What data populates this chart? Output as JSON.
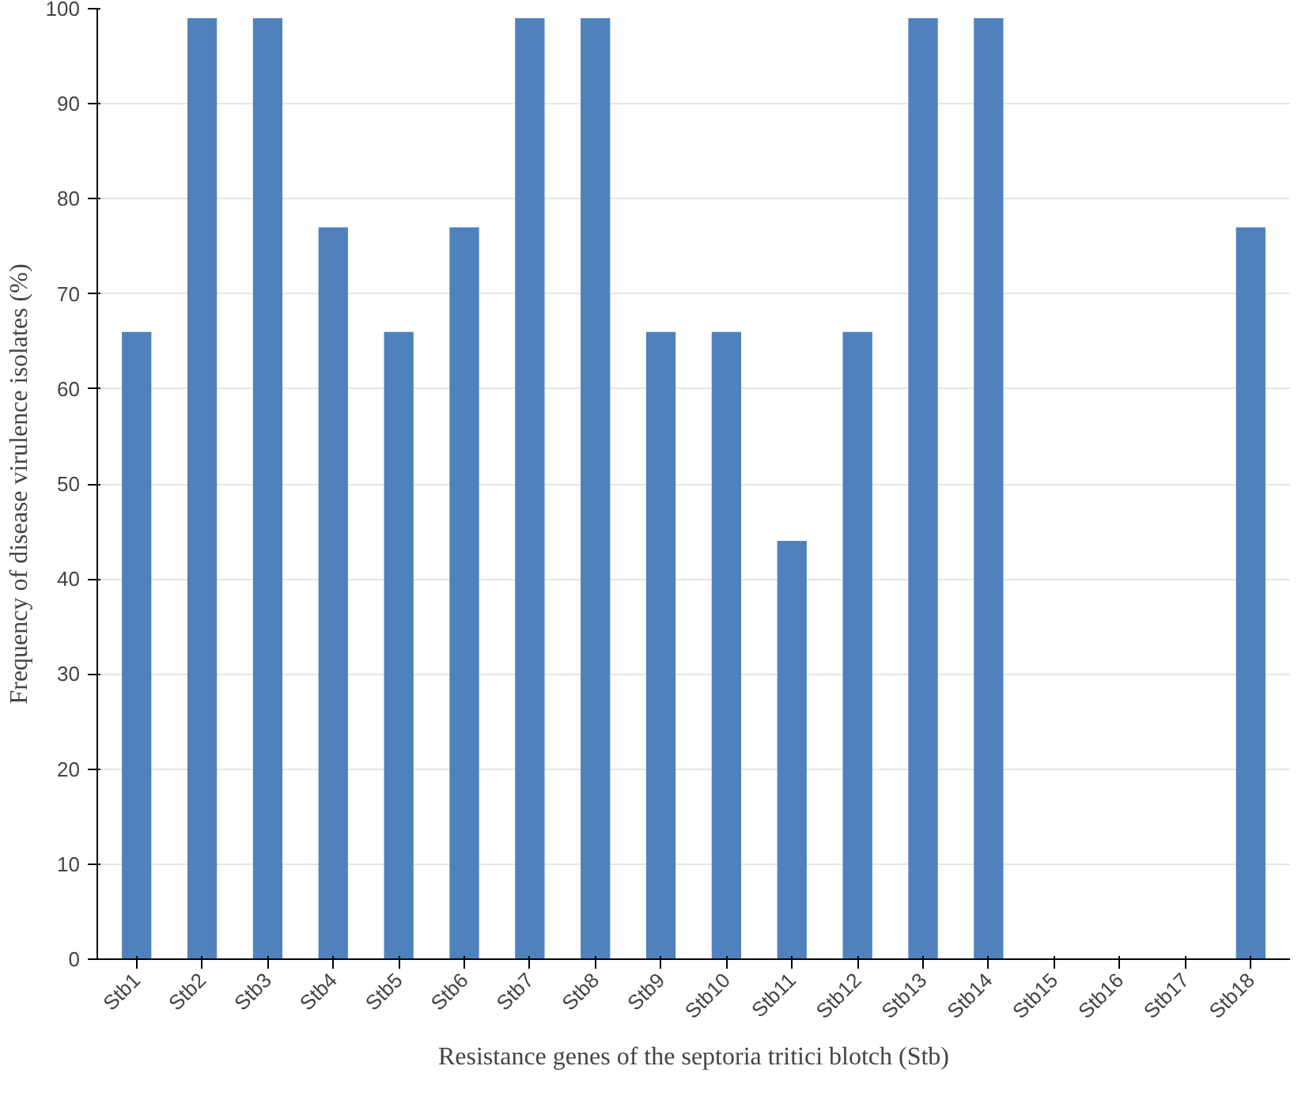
{
  "chart_data": {
    "type": "bar",
    "xlabel": "Resistance genes of the septoria tritici blotch (Stb)",
    "ylabel": "Frequency of disease virulence isolates (%)",
    "categories": [
      "Stb1",
      "Stb2",
      "Stb3",
      "Stb4",
      "Stb5",
      "Stb6",
      "Stb7",
      "Stb8",
      "Stb9",
      "Stb10",
      "Stb11",
      "Stb12",
      "Stb13",
      "Stb14",
      "Stb15",
      "Stb16",
      "Stb17",
      "Stb18"
    ],
    "values": [
      66,
      99,
      99,
      77,
      66,
      77,
      99,
      99,
      66,
      66,
      44,
      66,
      99,
      99,
      0,
      0,
      0,
      77
    ],
    "color": "#4f81bd",
    "ylim": [
      0,
      100
    ],
    "yticks": [
      0,
      10,
      20,
      30,
      40,
      50,
      60,
      70,
      80,
      90,
      100
    ],
    "grid": "y"
  }
}
